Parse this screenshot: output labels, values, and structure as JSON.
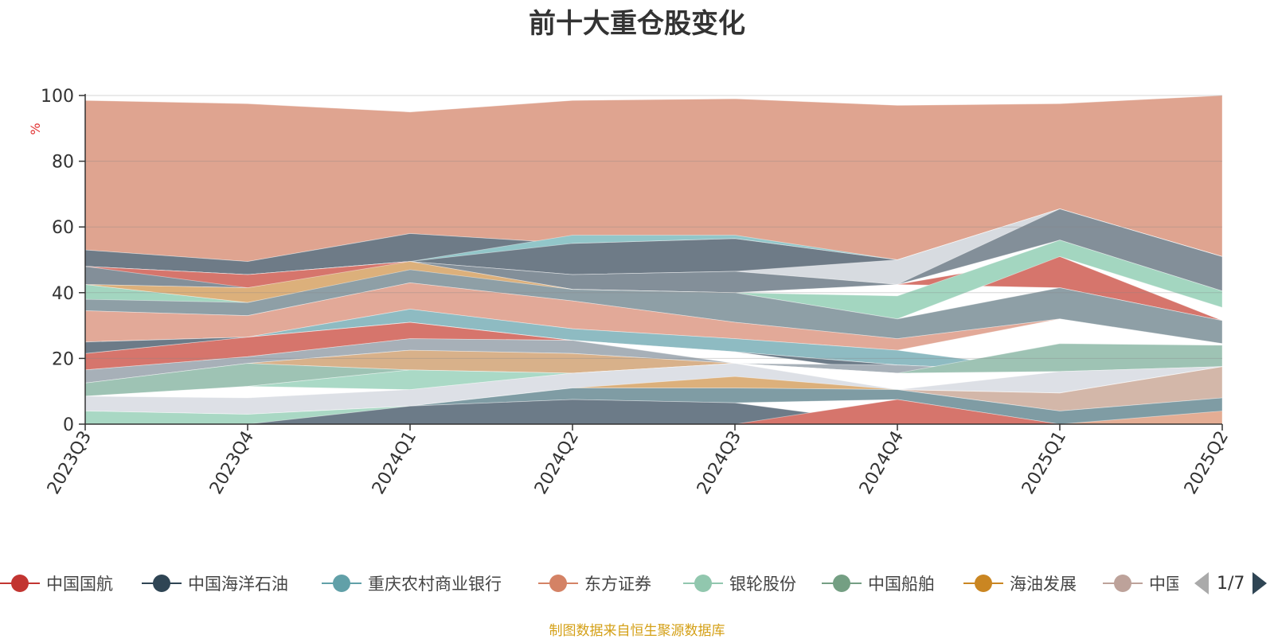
{
  "chart_data": {
    "type": "area",
    "title": "前十大重仓股变化",
    "ylabel": "%",
    "ylim": [
      0,
      100
    ],
    "yticks": [
      0,
      20,
      40,
      60,
      80,
      100
    ],
    "grid": true,
    "legend_position": "bottom",
    "categories": [
      "2023Q3",
      "2023Q4",
      "2024Q1",
      "2024Q2",
      "2024Q3",
      "2024Q4",
      "2025Q1",
      "2025Q2"
    ],
    "bands": [
      {
        "color": "#dfa490",
        "lower": [
          53,
          49.5,
          58,
          55,
          56.5,
          50,
          65.5,
          51
        ],
        "upper": [
          98.5,
          97.5,
          95,
          98.5,
          99,
          97,
          97.5,
          100
        ]
      },
      {
        "color": "#6e7b87",
        "lower": [
          48,
          45.5,
          49.5,
          45.5,
          46.5,
          42.5,
          56,
          40.5
        ],
        "upper": [
          53,
          49.5,
          58,
          55,
          56.5,
          50,
          65.5,
          51
        ]
      },
      {
        "color": "#d7dbe0",
        "lower": [
          48,
          45.5,
          49.5,
          45.5,
          46.5,
          42.5,
          56,
          40.5
        ],
        "upper": [
          48,
          45.5,
          49.5,
          45.5,
          46.5,
          50,
          65.5,
          51
        ]
      },
      {
        "color": "#838f99",
        "lower": [
          42.5,
          41.5,
          49,
          41,
          40,
          42.5,
          56,
          40.5
        ],
        "upper": [
          48,
          45.5,
          49.5,
          45.5,
          46.5,
          42.5,
          65.5,
          51
        ]
      },
      {
        "color": "#92c6c9",
        "lower": [
          48,
          45.5,
          49.5,
          55,
          56.5,
          50,
          65.5,
          51
        ],
        "upper": [
          48,
          45.5,
          49.5,
          57.5,
          57.5,
          50,
          65.5,
          51
        ]
      },
      {
        "color": "#d6756c",
        "lower": [
          48,
          41.5,
          49,
          41,
          40,
          42.5,
          41.5,
          31.5
        ],
        "upper": [
          48,
          45.5,
          49.5,
          41,
          40,
          42.5,
          51,
          31.5
        ]
      },
      {
        "color": "#a3d6c0",
        "lower": [
          38,
          33,
          47,
          41,
          40,
          32,
          51,
          35.5
        ],
        "upper": [
          42.5,
          37,
          49,
          41,
          40,
          39,
          56,
          40.5
        ]
      },
      {
        "color": "#dcb07b",
        "lower": [
          42.5,
          37,
          46,
          38,
          33,
          22.5,
          41.5,
          31.5
        ],
        "upper": [
          42.5,
          41.5,
          49.5,
          41,
          40,
          22.5,
          41.5,
          31.5
        ]
      },
      {
        "color": "#8e9fa6",
        "lower": [
          34.5,
          33,
          43,
          37.5,
          31,
          26,
          32,
          24.5
        ],
        "upper": [
          38,
          37,
          47,
          41,
          40,
          32,
          41.5,
          31.5
        ]
      },
      {
        "color": "#e2a998",
        "lower": [
          25,
          26.5,
          35,
          29,
          26,
          22.5,
          32,
          24.5
        ],
        "upper": [
          34.5,
          33,
          43,
          37.5,
          31,
          26,
          32,
          24.5
        ]
      },
      {
        "color": "#8ebbc2",
        "lower": [
          25,
          26.5,
          31,
          25.5,
          22,
          18,
          16,
          17.5
        ],
        "upper": [
          25,
          26.5,
          35,
          29,
          26,
          22.5,
          16,
          20
        ]
      },
      {
        "color": "#d6756c",
        "lower": [
          16.5,
          20.5,
          26,
          25.5,
          22,
          18,
          16,
          17.5
        ],
        "upper": [
          21.5,
          26.5,
          31,
          25.5,
          22,
          18,
          16,
          17.5
        ]
      },
      {
        "color": "#6c7b88",
        "lower": [
          21.5,
          26.5,
          31,
          25.5,
          22,
          15.5,
          16,
          17.5
        ],
        "upper": [
          25,
          26.5,
          31,
          25.5,
          22,
          18,
          16,
          17.5
        ]
      },
      {
        "color": "#a7b0b8",
        "lower": [
          12.5,
          18.5,
          22.5,
          21.5,
          18.5,
          15.5,
          16,
          17.5
        ],
        "upper": [
          16.5,
          20.5,
          26,
          25.5,
          18.5,
          18,
          16,
          17.5
        ]
      },
      {
        "color": "#d8b18a",
        "lower": [
          12.5,
          18.5,
          16.5,
          15.5,
          18.5,
          15.5,
          16,
          17.5
        ],
        "upper": [
          12.5,
          18.5,
          22.5,
          21.5,
          18.5,
          15.5,
          16,
          17.5
        ]
      },
      {
        "color": "#9ec3b4",
        "lower": [
          8.5,
          11.5,
          16.5,
          15.5,
          18.5,
          15.5,
          16,
          17.5
        ],
        "upper": [
          12.5,
          18.5,
          16.5,
          15.5,
          18.5,
          15.5,
          24.5,
          24
        ]
      },
      {
        "color": "#aad9c6",
        "lower": [
          8.5,
          11.5,
          10.5,
          15.5,
          18.5,
          15.5,
          16,
          17.5
        ],
        "upper": [
          8.5,
          11.5,
          16.5,
          15.5,
          18.5,
          15.5,
          16,
          17.5
        ]
      },
      {
        "color": "#dde0e6",
        "lower": [
          4,
          3,
          5.5,
          11,
          11,
          10.5,
          9.5,
          17.5
        ],
        "upper": [
          8.5,
          8,
          10.5,
          15.5,
          18.5,
          10.5,
          16,
          17.5
        ]
      },
      {
        "color": "#d3b7a9",
        "lower": [
          4,
          3,
          5.5,
          11,
          11,
          10.5,
          4,
          8
        ],
        "upper": [
          4,
          3,
          5.5,
          11,
          11,
          10.5,
          9.5,
          17.5
        ]
      },
      {
        "color": "#dcb07b",
        "lower": [
          4,
          3,
          5.5,
          11,
          11,
          10.5,
          9.5,
          17.5
        ],
        "upper": [
          4,
          3,
          5.5,
          11,
          14.5,
          10.5,
          9.5,
          17.5
        ]
      },
      {
        "color": "#7f9ca4",
        "lower": [
          0,
          0,
          5.5,
          7.5,
          6.5,
          7.5,
          0,
          0
        ],
        "upper": [
          0,
          0,
          5.5,
          11,
          11,
          10.5,
          4,
          8
        ]
      },
      {
        "color": "#a9d8c4",
        "lower": [
          0,
          0,
          0,
          0,
          0,
          0,
          0,
          0
        ],
        "upper": [
          4,
          3,
          5.5,
          0,
          0,
          0,
          0,
          0
        ]
      },
      {
        "color": "#6c7b88",
        "lower": [
          0,
          0,
          0,
          0,
          0,
          0,
          0,
          0
        ],
        "upper": [
          0,
          0,
          5.5,
          7.5,
          6.5,
          0,
          0,
          0
        ]
      },
      {
        "color": "#d6756c",
        "lower": [
          0,
          0,
          0,
          0,
          0,
          0,
          0,
          0
        ],
        "upper": [
          0,
          0,
          0,
          0,
          0,
          7.5,
          0,
          0
        ]
      },
      {
        "color": "#e4ad94",
        "lower": [
          0,
          0,
          0,
          0,
          0,
          0,
          0,
          0
        ],
        "upper": [
          0,
          0,
          0,
          0,
          0,
          0,
          0,
          4
        ]
      }
    ]
  },
  "legend": {
    "items": [
      {
        "label": "中国国航",
        "color": "#c23531"
      },
      {
        "label": "中国海洋石油",
        "color": "#2f4554"
      },
      {
        "label": "重庆农村商业银行",
        "color": "#61a0a8"
      },
      {
        "label": "东方证券",
        "color": "#d48265"
      },
      {
        "label": "银轮股份",
        "color": "#91c7ae"
      },
      {
        "label": "中国船舶",
        "color": "#749f83"
      },
      {
        "label": "海油发展",
        "color": "#ca8622"
      },
      {
        "label": "中国",
        "color": "#bda29a"
      }
    ],
    "page_indicator": "1/7"
  },
  "source_note": "制图数据来自恒生聚源数据库"
}
